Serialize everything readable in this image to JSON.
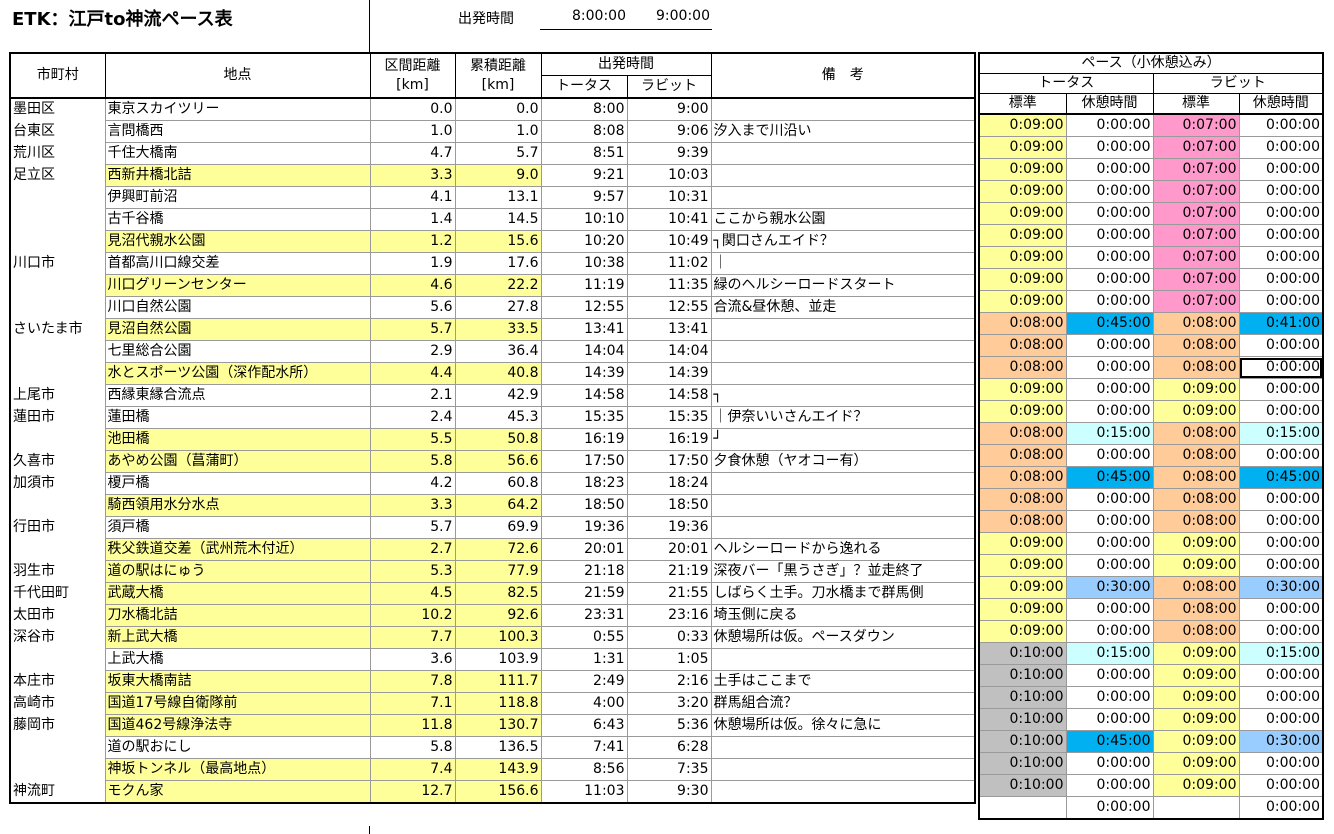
{
  "title": "ETK：江戸to神流ペース表",
  "departure": {
    "label": "出発時間",
    "tortoise": "8:00:00",
    "rabbit": "9:00:00"
  },
  "main_header": {
    "municipality": "市町村",
    "point": "地点",
    "section_dist": "区間距離",
    "cum_dist": "累積距離",
    "unit": "[km]",
    "dep_time": "出発時間",
    "tortoise": "トータス",
    "rabbit": "ラビット",
    "remarks": "備　考"
  },
  "pace_header": {
    "title": "ペース（小休憩込み）",
    "tortoise": "トータス",
    "rabbit": "ラビット",
    "standard": "標準",
    "rest": "休憩時間"
  },
  "colors": {
    "highlight": "#ffff99",
    "pink": "#ff99cc",
    "orange": "#ffcc99",
    "gray": "#c0c0c0",
    "blue": "#00b0f0",
    "light_blue": "#ccffff",
    "mid_blue": "#99ccff"
  },
  "rows": [
    {
      "muni": "墨田区",
      "point": "東京スカイツリー",
      "hl": false,
      "seg": "0.0",
      "cum": "0.0",
      "tt": "8:00",
      "rt": "9:00",
      "rem": "",
      "p": [
        "0:09:00",
        "0:00:00",
        "0:07:00",
        "0:00:00"
      ],
      "pc": [
        "y",
        "w",
        "p",
        "w"
      ]
    },
    {
      "muni": "台東区",
      "point": "言問橋西",
      "hl": false,
      "seg": "1.0",
      "cum": "1.0",
      "tt": "8:08",
      "rt": "9:06",
      "rem": "汐入まで川沿い",
      "p": [
        "0:09:00",
        "0:00:00",
        "0:07:00",
        "0:00:00"
      ],
      "pc": [
        "y",
        "w",
        "p",
        "w"
      ]
    },
    {
      "muni": "荒川区",
      "point": "千住大橋南",
      "hl": false,
      "seg": "4.7",
      "cum": "5.7",
      "tt": "8:51",
      "rt": "9:39",
      "rem": "",
      "p": [
        "0:09:00",
        "0:00:00",
        "0:07:00",
        "0:00:00"
      ],
      "pc": [
        "y",
        "w",
        "p",
        "w"
      ]
    },
    {
      "muni": "足立区",
      "point": "西新井橋北詰",
      "hl": true,
      "seg": "3.3",
      "cum": "9.0",
      "tt": "9:21",
      "rt": "10:03",
      "rem": "",
      "p": [
        "0:09:00",
        "0:00:00",
        "0:07:00",
        "0:00:00"
      ],
      "pc": [
        "y",
        "w",
        "p",
        "w"
      ]
    },
    {
      "muni": "",
      "point": "伊興町前沼",
      "hl": false,
      "seg": "4.1",
      "cum": "13.1",
      "tt": "9:57",
      "rt": "10:31",
      "rem": "",
      "p": [
        "0:09:00",
        "0:00:00",
        "0:07:00",
        "0:00:00"
      ],
      "pc": [
        "y",
        "w",
        "p",
        "w"
      ]
    },
    {
      "muni": "",
      "point": "古千谷橋",
      "hl": false,
      "seg": "1.4",
      "cum": "14.5",
      "tt": "10:10",
      "rt": "10:41",
      "rem": "ここから親水公園",
      "p": [
        "0:09:00",
        "0:00:00",
        "0:07:00",
        "0:00:00"
      ],
      "pc": [
        "y",
        "w",
        "p",
        "w"
      ]
    },
    {
      "muni": "",
      "point": "見沼代親水公園",
      "hl": true,
      "seg": "1.2",
      "cum": "15.6",
      "tt": "10:20",
      "rt": "10:49",
      "rem": "┐関口さんエイド？",
      "p": [
        "0:09:00",
        "0:00:00",
        "0:07:00",
        "0:00:00"
      ],
      "pc": [
        "y",
        "w",
        "p",
        "w"
      ]
    },
    {
      "muni": "川口市",
      "point": "首都高川口線交差",
      "hl": false,
      "seg": "1.9",
      "cum": "17.6",
      "tt": "10:38",
      "rt": "11:02",
      "rem": "｜",
      "p": [
        "0:09:00",
        "0:00:00",
        "0:07:00",
        "0:00:00"
      ],
      "pc": [
        "y",
        "w",
        "p",
        "w"
      ]
    },
    {
      "muni": "",
      "point": "川口グリーンセンター",
      "hl": true,
      "seg": "4.6",
      "cum": "22.2",
      "tt": "11:19",
      "rt": "11:35",
      "rem": "緑のヘルシーロードスタート",
      "p": [
        "0:09:00",
        "0:00:00",
        "0:07:00",
        "0:00:00"
      ],
      "pc": [
        "y",
        "w",
        "p",
        "w"
      ]
    },
    {
      "muni": "",
      "point": "川口自然公園",
      "hl": false,
      "seg": "5.6",
      "cum": "27.8",
      "tt": "12:55",
      "rt": "12:55",
      "rem": "合流&昼休憩、並走",
      "p": [
        "0:08:00",
        "0:45:00",
        "0:08:00",
        "0:41:00"
      ],
      "pc": [
        "o",
        "b",
        "o",
        "b"
      ]
    },
    {
      "muni": "さいたま市",
      "point": "見沼自然公園",
      "hl": true,
      "seg": "5.7",
      "cum": "33.5",
      "tt": "13:41",
      "rt": "13:41",
      "rem": "",
      "p": [
        "0:08:00",
        "0:00:00",
        "0:08:00",
        "0:00:00"
      ],
      "pc": [
        "o",
        "w",
        "o",
        "w"
      ]
    },
    {
      "muni": "",
      "point": "七里総合公園",
      "hl": false,
      "seg": "2.9",
      "cum": "36.4",
      "tt": "14:04",
      "rt": "14:04",
      "rem": "",
      "p": [
        "0:08:00",
        "0:00:00",
        "0:08:00",
        "0:00:00"
      ],
      "pc": [
        "o",
        "w",
        "o",
        "sel"
      ]
    },
    {
      "muni": "",
      "point": "水とスポーツ公園（深作配水所）",
      "hl": true,
      "seg": "4.4",
      "cum": "40.8",
      "tt": "14:39",
      "rt": "14:39",
      "rem": "",
      "p": [
        "0:09:00",
        "0:00:00",
        "0:09:00",
        "0:00:00"
      ],
      "pc": [
        "y",
        "w",
        "y",
        "w"
      ]
    },
    {
      "muni": "上尾市",
      "point": "西縁東縁合流点",
      "hl": false,
      "seg": "2.1",
      "cum": "42.9",
      "tt": "14:58",
      "rt": "14:58",
      "rem": "┐",
      "p": [
        "0:09:00",
        "0:00:00",
        "0:09:00",
        "0:00:00"
      ],
      "pc": [
        "y",
        "w",
        "y",
        "w"
      ]
    },
    {
      "muni": "蓮田市",
      "point": "蓮田橋",
      "hl": false,
      "seg": "2.4",
      "cum": "45.3",
      "tt": "15:35",
      "rt": "15:35",
      "rem": "｜伊奈いいさんエイド？",
      "p": [
        "0:08:00",
        "0:15:00",
        "0:08:00",
        "0:15:00"
      ],
      "pc": [
        "o",
        "lb",
        "o",
        "lb"
      ]
    },
    {
      "muni": "",
      "point": "池田橋",
      "hl": true,
      "seg": "5.5",
      "cum": "50.8",
      "tt": "16:19",
      "rt": "16:19",
      "rem": "┘",
      "p": [
        "0:08:00",
        "0:00:00",
        "0:08:00",
        "0:00:00"
      ],
      "pc": [
        "o",
        "w",
        "o",
        "w"
      ]
    },
    {
      "muni": "久喜市",
      "point": "あやめ公園（菖蒲町）",
      "hl": true,
      "seg": "5.8",
      "cum": "56.6",
      "tt": "17:50",
      "rt": "17:50",
      "rem": "夕食休憩（ヤオコー有）",
      "p": [
        "0:08:00",
        "0:45:00",
        "0:08:00",
        "0:45:00"
      ],
      "pc": [
        "o",
        "b",
        "o",
        "b"
      ]
    },
    {
      "muni": "加須市",
      "point": "榎戸橋",
      "hl": false,
      "seg": "4.2",
      "cum": "60.8",
      "tt": "18:23",
      "rt": "18:24",
      "rem": "",
      "p": [
        "0:08:00",
        "0:00:00",
        "0:08:00",
        "0:00:00"
      ],
      "pc": [
        "o",
        "w",
        "o",
        "w"
      ]
    },
    {
      "muni": "",
      "point": "騎西領用水分水点",
      "hl": true,
      "seg": "3.3",
      "cum": "64.2",
      "tt": "18:50",
      "rt": "18:50",
      "rem": "",
      "p": [
        "0:08:00",
        "0:00:00",
        "0:08:00",
        "0:00:00"
      ],
      "pc": [
        "o",
        "w",
        "o",
        "w"
      ]
    },
    {
      "muni": "行田市",
      "point": "須戸橋",
      "hl": false,
      "seg": "5.7",
      "cum": "69.9",
      "tt": "19:36",
      "rt": "19:36",
      "rem": "",
      "p": [
        "0:09:00",
        "0:00:00",
        "0:09:00",
        "0:00:00"
      ],
      "pc": [
        "y",
        "w",
        "y",
        "w"
      ]
    },
    {
      "muni": "",
      "point": "秩父鉄道交差（武州荒木付近）",
      "hl": true,
      "seg": "2.7",
      "cum": "72.6",
      "tt": "20:01",
      "rt": "20:01",
      "rem": "ヘルシーロードから逸れる",
      "p": [
        "0:09:00",
        "0:00:00",
        "0:09:00",
        "0:00:00"
      ],
      "pc": [
        "y",
        "w",
        "y",
        "w"
      ]
    },
    {
      "muni": "羽生市",
      "point": "道の駅はにゅう",
      "hl": true,
      "seg": "5.3",
      "cum": "77.9",
      "tt": "21:18",
      "rt": "21:19",
      "rem": "深夜バー「黒うさぎ」？並走終了",
      "p": [
        "0:09:00",
        "0:30:00",
        "0:08:00",
        "0:30:00"
      ],
      "pc": [
        "y",
        "mb",
        "o",
        "mb"
      ]
    },
    {
      "muni": "千代田町",
      "point": "武蔵大橋",
      "hl": true,
      "seg": "4.5",
      "cum": "82.5",
      "tt": "21:59",
      "rt": "21:55",
      "rem": "しばらく土手。刀水橋まで群馬側",
      "p": [
        "0:09:00",
        "0:00:00",
        "0:08:00",
        "0:00:00"
      ],
      "pc": [
        "y",
        "w",
        "o",
        "w"
      ]
    },
    {
      "muni": "太田市",
      "point": "刀水橋北詰",
      "hl": true,
      "seg": "10.2",
      "cum": "92.6",
      "tt": "23:31",
      "rt": "23:16",
      "rem": "埼玉側に戻る",
      "p": [
        "0:09:00",
        "0:00:00",
        "0:08:00",
        "0:00:00"
      ],
      "pc": [
        "y",
        "w",
        "o",
        "w"
      ]
    },
    {
      "muni": "深谷市",
      "point": "新上武大橋",
      "hl": true,
      "seg": "7.7",
      "cum": "100.3",
      "tt": "0:55",
      "rt": "0:33",
      "rem": "休憩場所は仮。ペースダウン",
      "p": [
        "0:10:00",
        "0:15:00",
        "0:09:00",
        "0:15:00"
      ],
      "pc": [
        "g",
        "lb",
        "y",
        "lb"
      ]
    },
    {
      "muni": "",
      "point": "上武大橋",
      "hl": false,
      "seg": "3.6",
      "cum": "103.9",
      "tt": "1:31",
      "rt": "1:05",
      "rem": "",
      "p": [
        "0:10:00",
        "0:00:00",
        "0:09:00",
        "0:00:00"
      ],
      "pc": [
        "g",
        "w",
        "y",
        "w"
      ]
    },
    {
      "muni": "本庄市",
      "point": "坂東大橋南詰",
      "hl": true,
      "seg": "7.8",
      "cum": "111.7",
      "tt": "2:49",
      "rt": "2:16",
      "rem": "土手はここまで",
      "p": [
        "0:10:00",
        "0:00:00",
        "0:09:00",
        "0:00:00"
      ],
      "pc": [
        "g",
        "w",
        "y",
        "w"
      ]
    },
    {
      "muni": "高崎市",
      "point": "国道17号線自衛隊前",
      "hl": true,
      "seg": "7.1",
      "cum": "118.8",
      "tt": "4:00",
      "rt": "3:20",
      "rem": "群馬組合流？",
      "p": [
        "0:10:00",
        "0:00:00",
        "0:09:00",
        "0:00:00"
      ],
      "pc": [
        "g",
        "w",
        "y",
        "w"
      ]
    },
    {
      "muni": "藤岡市",
      "point": "国道462号線浄法寺",
      "hl": true,
      "seg": "11.8",
      "cum": "130.7",
      "tt": "6:43",
      "rt": "5:36",
      "rem": "休憩場所は仮。徐々に急に",
      "p": [
        "0:10:00",
        "0:45:00",
        "0:09:00",
        "0:30:00"
      ],
      "pc": [
        "g",
        "b",
        "y",
        "mb"
      ]
    },
    {
      "muni": "",
      "point": "道の駅おにし",
      "hl": false,
      "seg": "5.8",
      "cum": "136.5",
      "tt": "7:41",
      "rt": "6:28",
      "rem": "",
      "p": [
        "0:10:00",
        "0:00:00",
        "0:09:00",
        "0:00:00"
      ],
      "pc": [
        "g",
        "w",
        "y",
        "w"
      ]
    },
    {
      "muni": "",
      "point": "神坂トンネル（最高地点）",
      "hl": true,
      "seg": "7.4",
      "cum": "143.9",
      "tt": "8:56",
      "rt": "7:35",
      "rem": "",
      "p": [
        "0:10:00",
        "0:00:00",
        "0:09:00",
        "0:00:00"
      ],
      "pc": [
        "g",
        "w",
        "y",
        "w"
      ]
    },
    {
      "muni": "神流町",
      "point": "モクん家",
      "hl": true,
      "seg": "12.7",
      "cum": "156.6",
      "tt": "11:03",
      "rt": "9:30",
      "rem": "",
      "p": [
        "",
        "0:00:00",
        "",
        "0:00:00"
      ],
      "pc": [
        "w",
        "w",
        "w",
        "w"
      ]
    }
  ]
}
